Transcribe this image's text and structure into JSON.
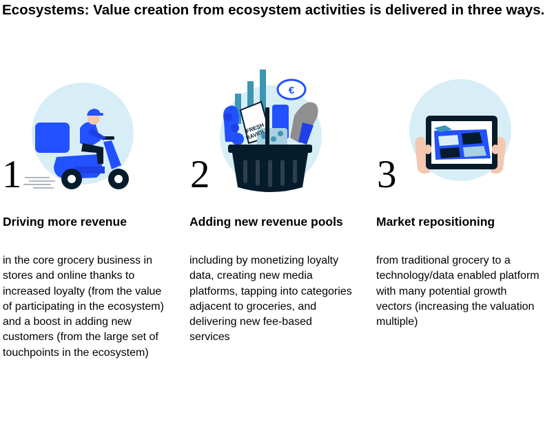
{
  "title": "Ecosystems: Value creation from ecosystem activities is delivered in three ways.",
  "steps": [
    {
      "number": "1",
      "heading": "Driving more revenue",
      "body": "in the core grocery business in stores and online thanks to increased loyalty (from the value of participating in the ecosystem) and a boost in adding new customers (from the large set of touchpoints in the ecosystem)",
      "icon": "delivery-scooter-icon"
    },
    {
      "number": "2",
      "heading": "Adding new revenue pools",
      "body": "including by monetizing loyalty data, creating new media platforms, tapping into categories adjacent to groceries, and delivering new fee-based services",
      "icon": "grocery-basket-icon",
      "basket_labels": {
        "product_label_top": "FRESH",
        "product_label_bottom": "RAVIOLI",
        "currency_symbol": "€"
      }
    },
    {
      "number": "3",
      "heading": "Market repositioning",
      "body": "from traditional grocery to a technology/data enabled platform with many potential growth vectors (increasing the valuation multiple)",
      "icon": "tablet-icon"
    }
  ],
  "colors": {
    "circle": "#d8eef7",
    "blue": "#2251ff",
    "dark": "#051c2c",
    "teal": "#3c96b4",
    "skin": "#f3c8b0"
  }
}
